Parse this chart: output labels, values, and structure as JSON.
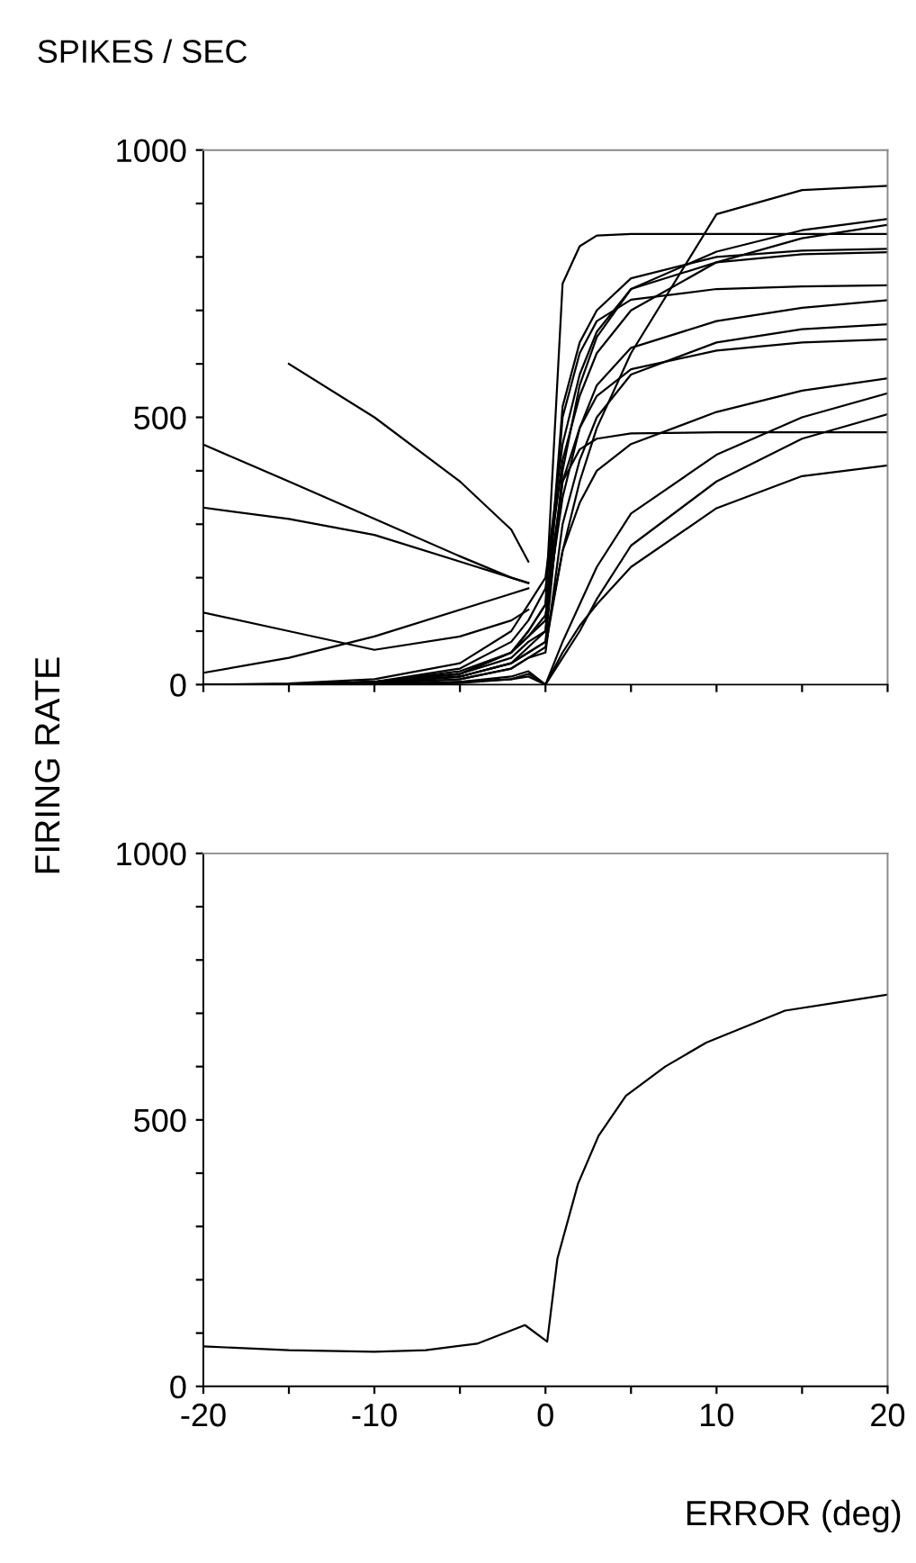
{
  "chart_data": [
    {
      "type": "line",
      "title": "SPIKES / SEC",
      "ylabel": "FIRING RATE",
      "x": [
        -20,
        -15,
        -10,
        -5,
        -2,
        -1,
        0,
        1,
        2,
        3,
        5,
        10,
        15,
        20
      ],
      "series": [
        {
          "color": "#000000",
          "values": [
            0,
            0,
            5,
            20,
            60,
            100,
            150,
            750,
            820,
            840,
            843,
            843,
            843,
            843
          ]
        },
        {
          "color": "#000000",
          "values": [
            0,
            0,
            5,
            15,
            40,
            60,
            80,
            250,
            380,
            480,
            620,
            880,
            925,
            933
          ]
        },
        {
          "color": "#000000",
          "values": [
            0,
            2,
            10,
            40,
            100,
            150,
            200,
            450,
            580,
            660,
            740,
            810,
            850,
            871
          ]
        },
        {
          "color": "#000000",
          "values": [
            0,
            0,
            5,
            30,
            80,
            120,
            180,
            420,
            540,
            620,
            700,
            790,
            835,
            860
          ]
        },
        {
          "color": "#000000",
          "values": [
            0,
            0,
            5,
            20,
            60,
            90,
            120,
            520,
            640,
            700,
            760,
            800,
            812,
            815
          ]
        },
        {
          "color": "#000000",
          "values": [
            0,
            0,
            3,
            15,
            40,
            60,
            80,
            400,
            560,
            650,
            740,
            790,
            805,
            809
          ]
        },
        {
          "color": "#000000",
          "values": [
            0,
            0,
            5,
            20,
            50,
            80,
            100,
            500,
            620,
            680,
            720,
            740,
            745,
            747
          ]
        },
        {
          "color": "#000000",
          "values": [
            0,
            0,
            5,
            25,
            60,
            90,
            130,
            350,
            480,
            560,
            630,
            680,
            705,
            719
          ]
        },
        {
          "color": "#000000",
          "values": [
            0,
            0,
            2,
            10,
            30,
            50,
            60,
            300,
            420,
            500,
            580,
            640,
            665,
            674
          ]
        },
        {
          "color": "#000000",
          "values": [
            0,
            0,
            3,
            15,
            40,
            70,
            100,
            380,
            480,
            540,
            590,
            625,
            640,
            646
          ]
        },
        {
          "color": "#000000",
          "values": [
            0,
            0,
            2,
            10,
            30,
            50,
            70,
            250,
            340,
            400,
            450,
            510,
            550,
            573
          ]
        },
        {
          "color": "#000000",
          "values": [
            0,
            0,
            0,
            5,
            15,
            25,
            0,
            80,
            150,
            220,
            320,
            430,
            500,
            545
          ]
        },
        {
          "color": "#000000",
          "values": [
            0,
            0,
            0,
            3,
            10,
            20,
            0,
            50,
            100,
            160,
            260,
            380,
            460,
            506
          ]
        },
        {
          "color": "#000000",
          "values": [
            0,
            0,
            5,
            20,
            60,
            100,
            150,
            380,
            440,
            460,
            470,
            472,
            472,
            472
          ]
        },
        {
          "color": "#000000",
          "values": [
            0,
            0,
            0,
            5,
            10,
            15,
            0,
            60,
            110,
            150,
            220,
            330,
            390,
            410
          ]
        },
        {
          "color": "#000000",
          "values": [
            449,
            380,
            310,
            240,
            200,
            190,
            null,
            null,
            null,
            null,
            null,
            null,
            null,
            null
          ]
        },
        {
          "color": "#000000",
          "values": [
            331,
            310,
            280,
            230,
            200,
            190,
            null,
            null,
            null,
            null,
            null,
            null,
            null,
            null
          ]
        },
        {
          "color": "#000000",
          "values": [
            135,
            100,
            65,
            90,
            120,
            140,
            null,
            null,
            null,
            null,
            null,
            null,
            null,
            null
          ]
        },
        {
          "color": "#000000",
          "values": [
            null,
            600,
            500,
            380,
            290,
            230,
            null,
            null,
            null,
            null,
            null,
            null,
            null,
            null
          ]
        },
        {
          "color": "#000000",
          "values": [
            22,
            50,
            90,
            140,
            170,
            180,
            null,
            null,
            null,
            null,
            null,
            null,
            null,
            null
          ]
        }
      ],
      "xlim": [
        -20,
        20
      ],
      "xticks": [
        {
          "value": -20,
          "label": null
        },
        {
          "value": -15,
          "label": null
        },
        {
          "value": -10,
          "label": null
        },
        {
          "value": -5,
          "label": null
        },
        {
          "value": 0,
          "label": null
        },
        {
          "value": 5,
          "label": null
        },
        {
          "value": 10,
          "label": null
        },
        {
          "value": 15,
          "label": null
        },
        {
          "value": 20,
          "label": null
        }
      ],
      "ylim": [
        0,
        1000
      ],
      "yticks": [
        0,
        {
          "value": 100,
          "label": null
        },
        {
          "value": 200,
          "label": null
        },
        {
          "value": 300,
          "label": null
        },
        {
          "value": 400,
          "label": null
        },
        500,
        {
          "value": 600,
          "label": null
        },
        {
          "value": 700,
          "label": null
        },
        {
          "value": 800,
          "label": null
        },
        {
          "value": 900,
          "label": null
        },
        1000
      ],
      "tick_labels": "y"
    },
    {
      "type": "line",
      "xlabel": "ERROR (deg)",
      "x": [
        -20,
        -15,
        -10,
        -7,
        -4,
        -1.2,
        0.1,
        0.7,
        1.9,
        3.1,
        4.7,
        7,
        9.4,
        14,
        17,
        20
      ],
      "series": [
        {
          "color": "#000000",
          "values": [
            75,
            68,
            65,
            68,
            80,
            115,
            84,
            240,
            380,
            470,
            545,
            600,
            645,
            705,
            720,
            735
          ]
        }
      ],
      "xlim": [
        -20,
        20
      ],
      "xticks": [
        -20,
        {
          "value": -15,
          "label": null
        },
        -10,
        {
          "value": -5,
          "label": null
        },
        0,
        {
          "value": 5,
          "label": null
        },
        10,
        {
          "value": 15,
          "label": null
        },
        20
      ],
      "ylim": [
        0,
        1000
      ],
      "yticks": [
        0,
        {
          "value": 100,
          "label": null
        },
        {
          "value": 200,
          "label": null
        },
        {
          "value": 300,
          "label": null
        },
        {
          "value": 400,
          "label": null
        },
        500,
        {
          "value": 600,
          "label": null
        },
        {
          "value": 700,
          "label": null
        },
        {
          "value": 800,
          "label": null
        },
        {
          "value": 900,
          "label": null
        },
        1000
      ]
    }
  ]
}
